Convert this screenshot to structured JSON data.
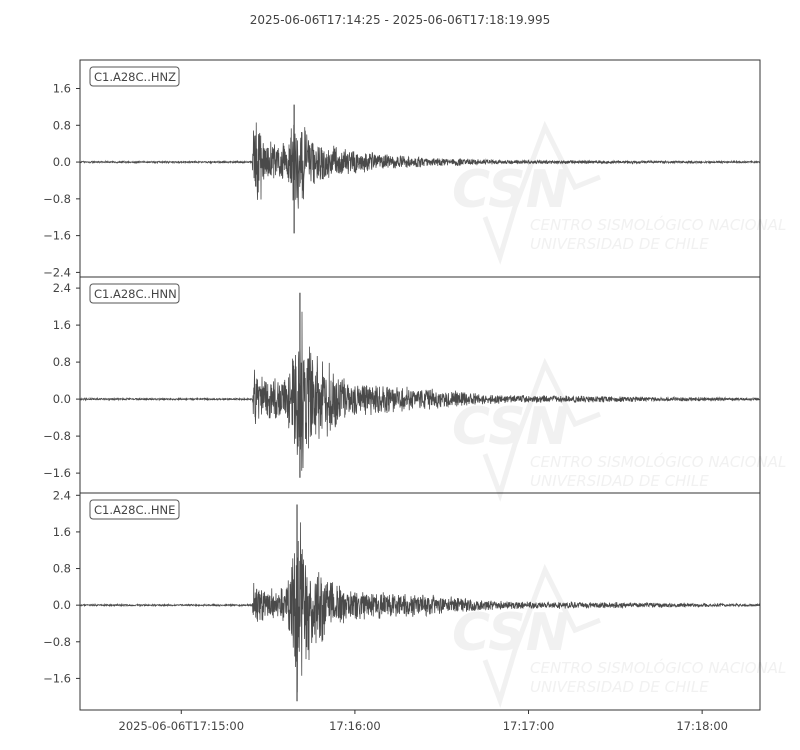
{
  "chart_data": {
    "type": "line",
    "title": "2025-06-06T17:14:25  -  2025-06-06T17:18:19.995",
    "start_time": "2025-06-06T17:14:25",
    "end_time": "2025-06-06T17:18:19.995",
    "x_ticks": [
      {
        "label": "2025-06-06T17:15:00",
        "t": 35
      },
      {
        "label": "17:16:00",
        "t": 95
      },
      {
        "label": "17:17:00",
        "t": 155
      },
      {
        "label": "17:18:00",
        "t": 215
      }
    ],
    "line_color": "#4a4a4a",
    "grid": false,
    "watermark": {
      "logo": "CSN",
      "line1": "CENTRO SISMOLÓGICO NACIONAL",
      "line2": "UNIVERSIDAD DE CHILE"
    },
    "series": [
      {
        "name": "C1.A28C..HNZ",
        "ylim": [
          -2.5,
          2.22
        ],
        "y_ticks": [
          "1.6",
          "0.8",
          "0.0",
          "−0.8",
          "−1.6",
          "−2.4"
        ],
        "y_tick_values": [
          1.6,
          0.8,
          0,
          -0.8,
          -1.6,
          -2.4
        ],
        "envelope": [
          [
            0,
            0.02
          ],
          [
            59.5,
            0.02
          ],
          [
            60,
            1.2
          ],
          [
            62,
            1.0
          ],
          [
            65,
            0.5
          ],
          [
            72,
            0.45
          ],
          [
            74,
            1.25
          ],
          [
            77,
            1.0
          ],
          [
            80,
            0.55
          ],
          [
            93,
            0.3
          ],
          [
            110,
            0.15
          ],
          [
            145,
            0.05
          ],
          [
            235,
            0.02
          ]
        ],
        "min_peak": -1.55
      },
      {
        "name": "C1.A28C..HNN",
        "ylim": [
          -2.03,
          2.64
        ],
        "y_ticks": [
          "2.4",
          "1.6",
          "0.8",
          "0.0",
          "−0.8",
          "−1.6"
        ],
        "y_tick_values": [
          2.4,
          1.6,
          0.8,
          0,
          -0.8,
          -1.6
        ],
        "envelope": [
          [
            0,
            0.02
          ],
          [
            59.5,
            0.02
          ],
          [
            60,
            0.75
          ],
          [
            64,
            0.6
          ],
          [
            70,
            0.45
          ],
          [
            73,
            0.9
          ],
          [
            76,
            2.3
          ],
          [
            78,
            1.6
          ],
          [
            86,
            0.8
          ],
          [
            92,
            0.45
          ],
          [
            110,
            0.3
          ],
          [
            145,
            0.1
          ],
          [
            235,
            0.03
          ]
        ],
        "min_peak": -1.7
      },
      {
        "name": "C1.A28C..HNE",
        "ylim": [
          -2.29,
          2.45
        ],
        "y_ticks": [
          "2.4",
          "1.6",
          "0.8",
          "0.0",
          "−0.8",
          "−1.6"
        ],
        "y_tick_values": [
          2.4,
          1.6,
          0.8,
          0,
          -0.8,
          -1.6
        ],
        "envelope": [
          [
            0,
            0.02
          ],
          [
            59.5,
            0.02
          ],
          [
            60,
            0.5
          ],
          [
            64,
            0.4
          ],
          [
            71,
            0.4
          ],
          [
            73,
            1.0
          ],
          [
            75,
            2.2
          ],
          [
            78,
            1.5
          ],
          [
            86,
            0.6
          ],
          [
            92,
            0.4
          ],
          [
            110,
            0.3
          ],
          [
            145,
            0.1
          ],
          [
            235,
            0.03
          ]
        ],
        "min_peak": -2.1
      }
    ]
  }
}
